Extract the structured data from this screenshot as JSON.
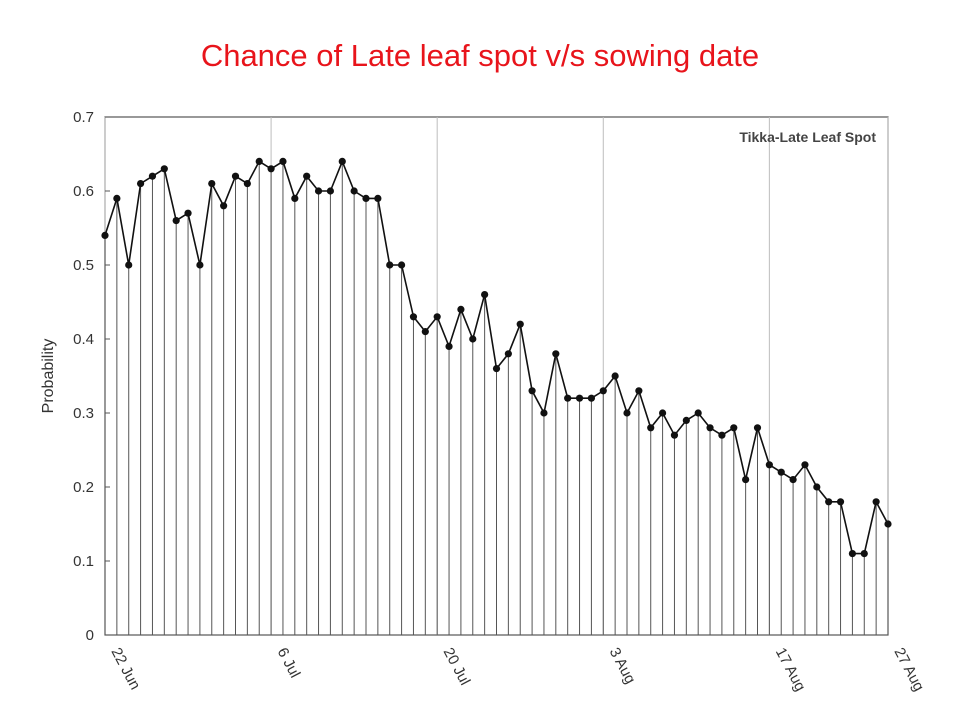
{
  "slide": {
    "title": "Chance of Late leaf spot v/s sowing date"
  },
  "chart_data": {
    "type": "line",
    "title": "",
    "legend": "Tikka-Late Leaf Spot",
    "legend_position": "top-right",
    "xlabel": "",
    "ylabel": "Probability",
    "ylim": [
      0,
      0.7
    ],
    "y_ticks": [
      "0",
      "0.1",
      "0.2",
      "0.3",
      "0.4",
      "0.5",
      "0.6",
      "0.7"
    ],
    "x_range": [
      "22 Jun",
      "27 Aug"
    ],
    "x_ticks": [
      "22 Jun",
      "6 Jul",
      "20 Jul",
      "3 Aug",
      "17 Aug",
      "27 Aug"
    ],
    "grid": "vertical at labelled dates",
    "drop_lines": true,
    "series": [
      {
        "name": "Tikka-Late Leaf Spot",
        "color": "#111111",
        "points": [
          [
            "22 Jun",
            0.54
          ],
          [
            "23 Jun",
            0.59
          ],
          [
            "24 Jun",
            0.5
          ],
          [
            "25 Jun",
            0.61
          ],
          [
            "26 Jun",
            0.62
          ],
          [
            "27 Jun",
            0.63
          ],
          [
            "28 Jun",
            0.56
          ],
          [
            "29 Jun",
            0.57
          ],
          [
            "30 Jun",
            0.5
          ],
          [
            "1 Jul",
            0.61
          ],
          [
            "2 Jul",
            0.58
          ],
          [
            "3 Jul",
            0.62
          ],
          [
            "4 Jul",
            0.61
          ],
          [
            "5 Jul",
            0.64
          ],
          [
            "6 Jul",
            0.63
          ],
          [
            "7 Jul",
            0.64
          ],
          [
            "8 Jul",
            0.59
          ],
          [
            "9 Jul",
            0.62
          ],
          [
            "10 Jul",
            0.6
          ],
          [
            "11 Jul",
            0.6
          ],
          [
            "12 Jul",
            0.64
          ],
          [
            "13 Jul",
            0.6
          ],
          [
            "14 Jul",
            0.59
          ],
          [
            "15 Jul",
            0.59
          ],
          [
            "16 Jul",
            0.5
          ],
          [
            "17 Jul",
            0.5
          ],
          [
            "18 Jul",
            0.43
          ],
          [
            "19 Jul",
            0.41
          ],
          [
            "20 Jul",
            0.43
          ],
          [
            "21 Jul",
            0.39
          ],
          [
            "22 Jul",
            0.44
          ],
          [
            "23 Jul",
            0.4
          ],
          [
            "24 Jul",
            0.46
          ],
          [
            "25 Jul",
            0.36
          ],
          [
            "26 Jul",
            0.38
          ],
          [
            "27 Jul",
            0.42
          ],
          [
            "28 Jul",
            0.33
          ],
          [
            "29 Jul",
            0.3
          ],
          [
            "30 Jul",
            0.38
          ],
          [
            "31 Jul",
            0.32
          ],
          [
            "1 Aug",
            0.32
          ],
          [
            "2 Aug",
            0.32
          ],
          [
            "3 Aug",
            0.33
          ],
          [
            "4 Aug",
            0.35
          ],
          [
            "5 Aug",
            0.3
          ],
          [
            "6 Aug",
            0.33
          ],
          [
            "7 Aug",
            0.28
          ],
          [
            "8 Aug",
            0.3
          ],
          [
            "9 Aug",
            0.27
          ],
          [
            "10 Aug",
            0.29
          ],
          [
            "11 Aug",
            0.3
          ],
          [
            "12 Aug",
            0.28
          ],
          [
            "13 Aug",
            0.27
          ],
          [
            "14 Aug",
            0.28
          ],
          [
            "15 Aug",
            0.21
          ],
          [
            "16 Aug",
            0.28
          ],
          [
            "17 Aug",
            0.23
          ],
          [
            "18 Aug",
            0.22
          ],
          [
            "19 Aug",
            0.21
          ],
          [
            "20 Aug",
            0.23
          ],
          [
            "21 Aug",
            0.2
          ],
          [
            "22 Aug",
            0.18
          ],
          [
            "23 Aug",
            0.18
          ],
          [
            "24 Aug",
            0.11
          ],
          [
            "25 Aug",
            0.11
          ],
          [
            "26 Aug",
            0.18
          ],
          [
            "27 Aug",
            0.15
          ]
        ]
      }
    ]
  }
}
